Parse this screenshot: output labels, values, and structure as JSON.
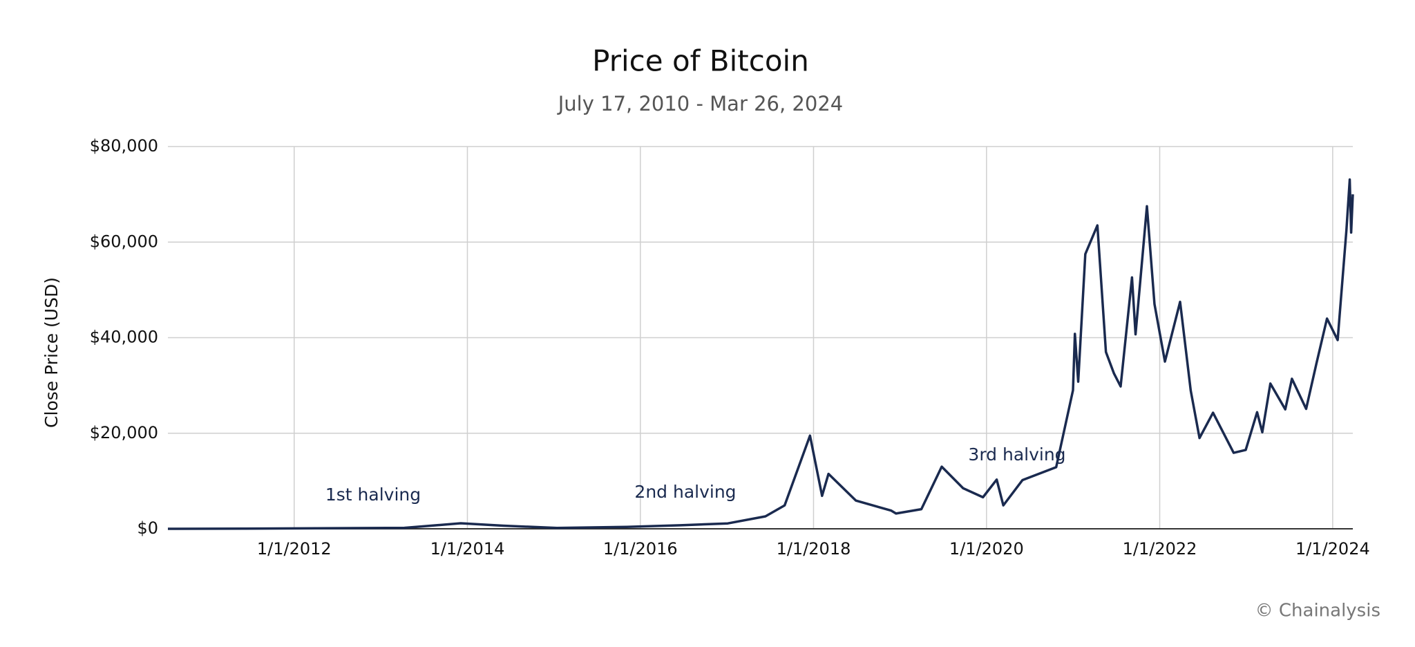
{
  "chart_data": {
    "type": "line",
    "title": "Price of Bitcoin",
    "subtitle": "July 17, 2010 - Mar 26, 2024",
    "y_label": "Close Price (USD)",
    "annotations": [
      "1st halving",
      "2nd halving",
      "3rd halving"
    ],
    "source": "© Chainalysis",
    "x": [
      "2010-07-17",
      "2011-06-08",
      "2013-04-10",
      "2013-12-04",
      "2014-06-01",
      "2015-01-14",
      "2015-11-04",
      "2016-06-18",
      "2017-01-04",
      "2017-06-12",
      "2017-09-01",
      "2017-12-17",
      "2018-02-06",
      "2018-03-05",
      "2018-06-29",
      "2018-11-25",
      "2018-12-15",
      "2019-04-01",
      "2019-06-26",
      "2019-09-24",
      "2019-12-17",
      "2020-02-13",
      "2020-03-12",
      "2020-06-01",
      "2020-10-21",
      "2020-12-31",
      "2021-01-08",
      "2021-01-22",
      "2021-02-21",
      "2021-04-13",
      "2021-05-19",
      "2021-06-22",
      "2021-07-20",
      "2021-09-06",
      "2021-09-21",
      "2021-11-08",
      "2021-12-10",
      "2022-01-23",
      "2022-03-28",
      "2022-05-12",
      "2022-06-18",
      "2022-08-14",
      "2022-11-09",
      "2022-12-30",
      "2023-02-16",
      "2023-03-10",
      "2023-04-13",
      "2023-06-15",
      "2023-07-13",
      "2023-09-11",
      "2023-10-24",
      "2023-12-08",
      "2024-01-22",
      "2024-02-28",
      "2024-03-13",
      "2024-03-19",
      "2024-03-26"
    ],
    "series": [
      {
        "name": "Close Price",
        "color": "#1a2a4f",
        "values": [
          0.05,
          30,
          200,
          1150,
          650,
          180,
          400,
          750,
          1130,
          2600,
          4900,
          19500,
          6900,
          11500,
          5900,
          3800,
          3200,
          4100,
          13000,
          8500,
          6600,
          10300,
          4900,
          10200,
          12900,
          29000,
          40800,
          30800,
          57500,
          63500,
          37000,
          32500,
          29800,
          52600,
          40700,
          67500,
          47000,
          35000,
          47500,
          28900,
          19000,
          24300,
          15900,
          16500,
          24400,
          20200,
          30400,
          25000,
          31400,
          25100,
          34500,
          44000,
          39500,
          62500,
          73100,
          62000,
          70000
        ]
      }
    ],
    "xlim": [
      "2010-07-17",
      "2024-03-26"
    ],
    "xticks": [
      {
        "value": "2012-01-01",
        "label": "1/1/2012"
      },
      {
        "value": "2014-01-01",
        "label": "1/1/2014"
      },
      {
        "value": "2016-01-01",
        "label": "1/1/2016"
      },
      {
        "value": "2018-01-01",
        "label": "1/1/2018"
      },
      {
        "value": "2020-01-01",
        "label": "1/1/2020"
      },
      {
        "value": "2022-01-01",
        "label": "1/1/2022"
      },
      {
        "value": "2024-01-01",
        "label": "1/1/2024"
      }
    ],
    "ylim": [
      0,
      80000
    ],
    "yticks": [
      {
        "value": 0,
        "label": "$0"
      },
      {
        "value": 20000,
        "label": "$20,000"
      },
      {
        "value": 40000,
        "label": "$40,000"
      },
      {
        "value": 60000,
        "label": "$60,000"
      },
      {
        "value": 80000,
        "label": "$80,000"
      }
    ],
    "grid": true
  }
}
